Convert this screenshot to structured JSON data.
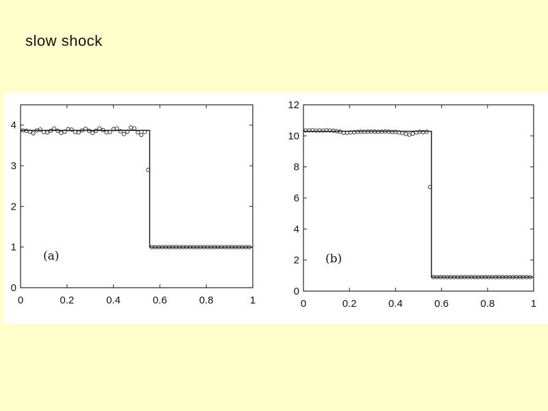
{
  "slide": {
    "title": "slow shock"
  },
  "chart_data": [
    {
      "type": "line",
      "panel_label": "(a)",
      "title": "",
      "xlabel": "",
      "ylabel": "",
      "xlim": [
        0,
        1
      ],
      "ylim": [
        0,
        4.5
      ],
      "xticks": [
        0,
        0.2,
        0.4,
        0.6,
        0.8,
        1
      ],
      "xtick_labels": [
        "0",
        "0.2",
        "0.4",
        "0.6",
        "0.8",
        "1"
      ],
      "yticks": [
        0,
        1,
        2,
        3,
        4
      ],
      "ytick_labels": [
        "0",
        "1",
        "2",
        "3",
        "4"
      ],
      "grid": false,
      "series": [
        {
          "style": "line",
          "x": [
            0,
            0.556,
            0.556,
            1
          ],
          "y": [
            3.87,
            3.87,
            1.0,
            1.0
          ]
        },
        {
          "style": "markers",
          "x": [
            0.01,
            0.025,
            0.04,
            0.055,
            0.07,
            0.085,
            0.1,
            0.115,
            0.13,
            0.145,
            0.16,
            0.175,
            0.19,
            0.205,
            0.22,
            0.235,
            0.25,
            0.265,
            0.28,
            0.295,
            0.31,
            0.325,
            0.34,
            0.355,
            0.37,
            0.385,
            0.4,
            0.415,
            0.43,
            0.445,
            0.46,
            0.475,
            0.49,
            0.505,
            0.52,
            0.535,
            0.55,
            0.565,
            0.58,
            0.595,
            0.61,
            0.625,
            0.64,
            0.655,
            0.67,
            0.685,
            0.7,
            0.715,
            0.73,
            0.745,
            0.76,
            0.775,
            0.79,
            0.805,
            0.82,
            0.835,
            0.85,
            0.865,
            0.88,
            0.895,
            0.91,
            0.925,
            0.94,
            0.955,
            0.97,
            0.985
          ],
          "y": [
            3.87,
            3.86,
            3.84,
            3.8,
            3.87,
            3.89,
            3.83,
            3.82,
            3.86,
            3.92,
            3.86,
            3.81,
            3.84,
            3.9,
            3.89,
            3.83,
            3.82,
            3.87,
            3.91,
            3.86,
            3.81,
            3.86,
            3.92,
            3.88,
            3.82,
            3.83,
            3.9,
            3.92,
            3.85,
            3.78,
            3.84,
            3.94,
            3.92,
            3.82,
            3.76,
            3.83,
            2.9,
            1.0,
            1.0,
            1.0,
            1.0,
            1.0,
            1.0,
            1.0,
            1.0,
            1.0,
            1.0,
            1.0,
            1.0,
            1.0,
            1.0,
            1.0,
            1.0,
            1.0,
            1.0,
            1.0,
            1.0,
            1.0,
            1.0,
            1.0,
            1.0,
            1.0,
            1.0,
            1.0,
            1.0,
            1.0
          ]
        }
      ]
    },
    {
      "type": "line",
      "panel_label": "(b)",
      "title": "",
      "xlabel": "",
      "ylabel": "",
      "xlim": [
        0,
        1
      ],
      "ylim": [
        0,
        12
      ],
      "xticks": [
        0,
        0.2,
        0.4,
        0.6,
        0.8,
        1
      ],
      "xtick_labels": [
        "0",
        "0.2",
        "0.4",
        "0.6",
        "0.8",
        "1"
      ],
      "yticks": [
        0,
        2,
        4,
        6,
        8,
        10,
        12
      ],
      "ytick_labels": [
        "0",
        "2",
        "4",
        "6",
        "8",
        "10",
        "12"
      ],
      "grid": false,
      "series": [
        {
          "style": "line",
          "x": [
            0,
            0.556,
            0.556,
            1
          ],
          "y": [
            10.3,
            10.3,
            0.9,
            0.9
          ]
        },
        {
          "style": "markers",
          "x": [
            0.01,
            0.025,
            0.04,
            0.055,
            0.07,
            0.085,
            0.1,
            0.115,
            0.13,
            0.145,
            0.16,
            0.175,
            0.19,
            0.205,
            0.22,
            0.235,
            0.25,
            0.265,
            0.28,
            0.295,
            0.31,
            0.325,
            0.34,
            0.355,
            0.37,
            0.385,
            0.4,
            0.415,
            0.43,
            0.445,
            0.46,
            0.475,
            0.49,
            0.505,
            0.52,
            0.535,
            0.55,
            0.565,
            0.58,
            0.595,
            0.61,
            0.625,
            0.64,
            0.655,
            0.67,
            0.685,
            0.7,
            0.715,
            0.73,
            0.745,
            0.76,
            0.775,
            0.79,
            0.805,
            0.82,
            0.835,
            0.85,
            0.865,
            0.88,
            0.895,
            0.91,
            0.925,
            0.94,
            0.955,
            0.97,
            0.985
          ],
          "y": [
            10.35,
            10.35,
            10.36,
            10.34,
            10.35,
            10.34,
            10.36,
            10.35,
            10.33,
            10.3,
            10.27,
            10.2,
            10.2,
            10.22,
            10.24,
            10.26,
            10.27,
            10.26,
            10.27,
            10.28,
            10.27,
            10.26,
            10.27,
            10.28,
            10.27,
            10.25,
            10.26,
            10.22,
            10.18,
            10.12,
            10.08,
            10.14,
            10.22,
            10.26,
            10.24,
            10.26,
            6.7,
            0.9,
            0.9,
            0.9,
            0.9,
            0.9,
            0.9,
            0.9,
            0.9,
            0.9,
            0.9,
            0.9,
            0.9,
            0.9,
            0.9,
            0.9,
            0.9,
            0.9,
            0.9,
            0.9,
            0.9,
            0.9,
            0.9,
            0.9,
            0.9,
            0.9,
            0.9,
            0.9,
            0.9,
            0.9
          ]
        }
      ]
    }
  ]
}
